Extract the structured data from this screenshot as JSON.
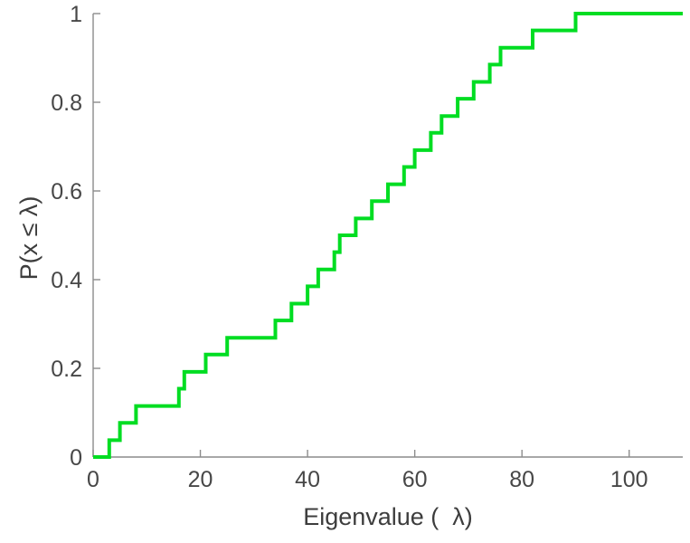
{
  "chart_data": {
    "type": "line",
    "subtype": "ecdf-step",
    "title": "",
    "xlabel": "Eigenvalue (  λ)",
    "ylabel": "P(x ≤ λ)",
    "xlim": [
      0,
      110
    ],
    "ylim": [
      0,
      1
    ],
    "grid": false,
    "legend": null,
    "xticks": {
      "values": [
        0,
        20,
        40,
        60,
        80,
        100
      ],
      "labels": [
        "0",
        "20",
        "40",
        "60",
        "80",
        "100"
      ]
    },
    "yticks": {
      "values": [
        0,
        0.2,
        0.4,
        0.6,
        0.8,
        1
      ],
      "labels": [
        "0",
        "0.2",
        "0.4",
        "0.6",
        "0.8",
        "1"
      ]
    },
    "line_color": "#00dd22",
    "line_width": 4,
    "axis_color": "#8c8c8c",
    "tick_label_color": "#474747",
    "axis_label_color": "#3d3d3d",
    "series": [
      {
        "name": "empirical-cdf",
        "x": [
          3,
          5,
          8,
          16,
          17,
          21,
          25,
          34,
          37,
          40,
          42,
          45,
          46,
          49,
          52,
          55,
          58,
          60,
          63,
          65,
          68,
          71,
          74,
          76,
          82,
          90
        ],
        "y": [
          0.038,
          0.077,
          0.115,
          0.154,
          0.192,
          0.231,
          0.269,
          0.308,
          0.346,
          0.385,
          0.423,
          0.462,
          0.5,
          0.538,
          0.577,
          0.615,
          0.654,
          0.692,
          0.731,
          0.769,
          0.808,
          0.846,
          0.885,
          0.923,
          0.962,
          1.0
        ],
        "start": [
          0,
          0
        ],
        "extend_to_x": 110
      }
    ]
  }
}
